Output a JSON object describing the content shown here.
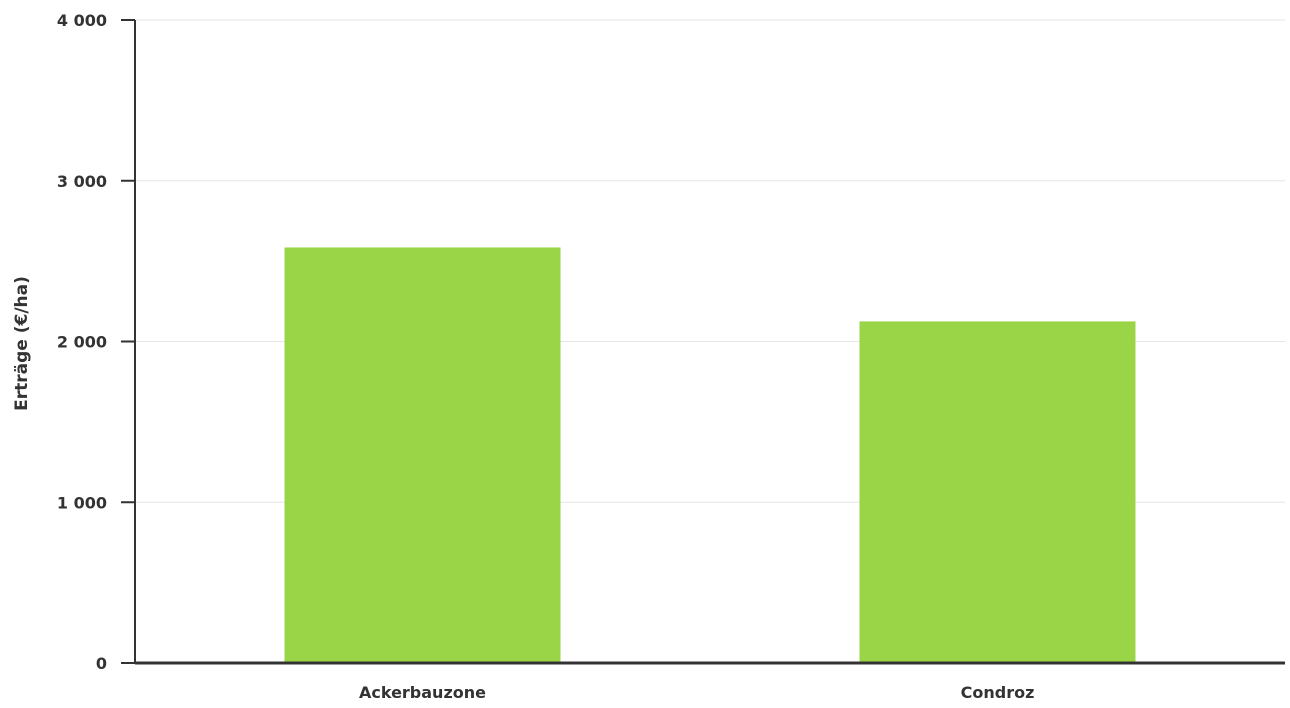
{
  "chart_data": {
    "type": "bar",
    "title": "",
    "xlabel": "",
    "ylabel": "Erträge (€/ha)",
    "categories": [
      "Ackerbauzone",
      "Condroz"
    ],
    "values": [
      2585,
      2125
    ],
    "ylim": [
      0,
      4000
    ],
    "yticks": [
      0,
      1000,
      2000,
      3000,
      4000
    ],
    "ytick_labels": [
      "0",
      "1 000",
      "2 000",
      "3 000",
      "4 000"
    ],
    "grid": true,
    "legend": "none",
    "colors": {
      "bar": "#9ad548",
      "axis": "#333333",
      "grid": "#e6e6e6",
      "text": "#333333"
    }
  }
}
